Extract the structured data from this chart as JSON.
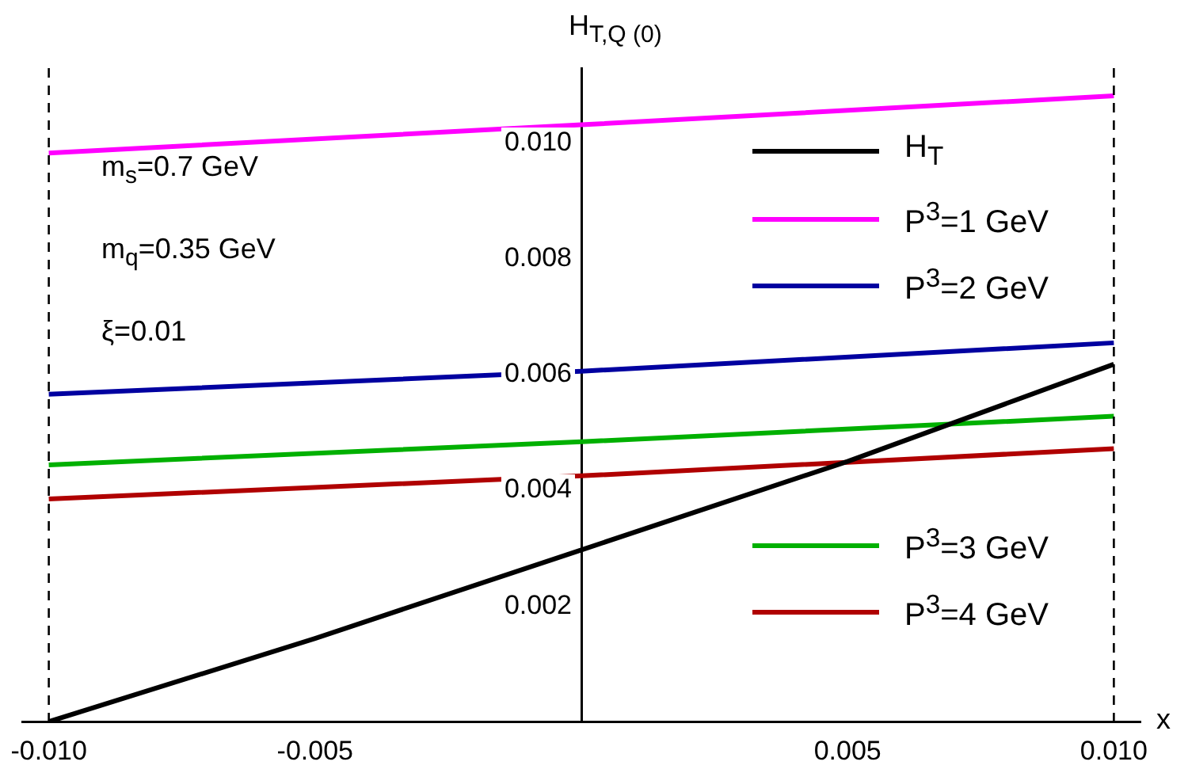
{
  "chart_data": {
    "type": "line",
    "xlabel": "x",
    "ylabel": "H$_{T,Q (0)}$",
    "series": [
      {
        "name": "H$_{T}$",
        "color": "#000000",
        "x": [
          -0.01,
          -0.005,
          0,
          0.005,
          0.01
        ],
        "values": [
          0,
          0.00144,
          0.00297,
          0.0045,
          0.00618
        ]
      },
      {
        "name": "P$^{3}$=1 GeV",
        "color": "#ff00ff",
        "x": [
          -0.01,
          0,
          0.01
        ],
        "values": [
          0.00983,
          0.01032,
          0.01082
        ]
      },
      {
        "name": "P$^{3}$=2 GeV",
        "color": "#0000a0",
        "x": [
          -0.01,
          0,
          0.01
        ],
        "values": [
          0.00566,
          0.00606,
          0.00655
        ]
      },
      {
        "name": "P$^{3}$=3 GeV",
        "color": "#00b000",
        "x": [
          -0.01,
          0,
          0.01
        ],
        "values": [
          0.00444,
          0.00484,
          0.00528
        ]
      },
      {
        "name": "P$^{3}$=4 GeV",
        "color": "#b00000",
        "x": [
          -0.01,
          0,
          0.01
        ],
        "values": [
          0.00385,
          0.00425,
          0.00472
        ]
      }
    ],
    "xlim": [
      -0.0105,
      0.0105
    ],
    "xticks": [
      {
        "value": -0.01,
        "label": "-0.010"
      },
      -0.005,
      0.005,
      {
        "value": 0.01,
        "label": "0.010"
      }
    ],
    "ylim": [
      0,
      0.0113
    ],
    "yticks": [
      0.002,
      0.004,
      0.006,
      0.008,
      {
        "value": 0.01,
        "label": "0.010"
      }
    ],
    "ref_lines": [
      {
        "axis": "x",
        "value": -0.01,
        "color": "#000000",
        "line_style": "dashed"
      },
      {
        "axis": "x",
        "value": 0.01,
        "color": "#000000",
        "line_style": "dashed"
      }
    ],
    "annotations": [
      "m$_{s}$=0.7 GeV",
      "m$_{q}$=0.35 GeV",
      "ξ=0.01"
    ],
    "legend": "right",
    "grid": false,
    "marker": "none",
    "line_style": "solid"
  }
}
